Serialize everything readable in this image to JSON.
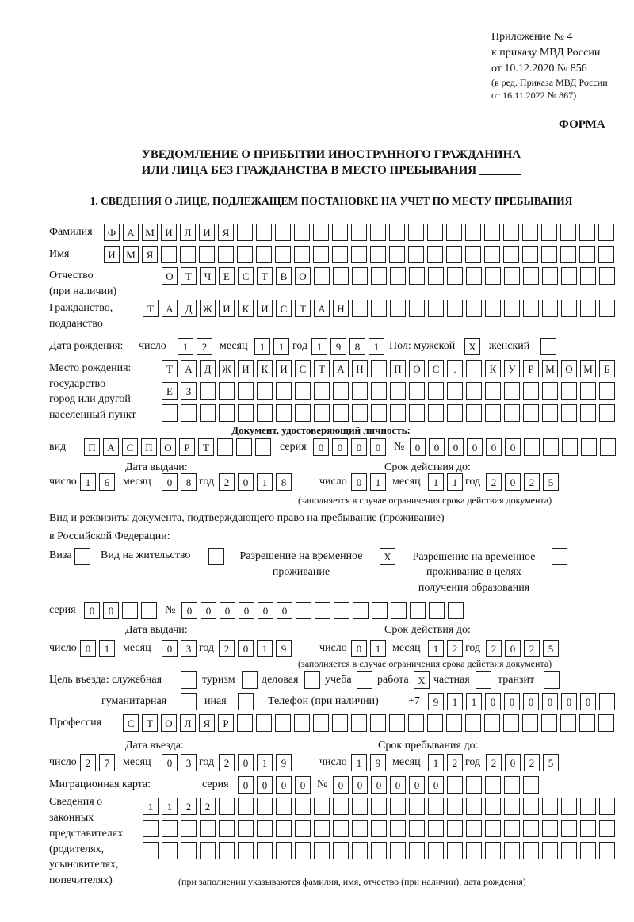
{
  "header": {
    "appendix": "Приложение № 4",
    "order": "к приказу МВД России",
    "order_date": "от 10.12.2020 № 856",
    "edition1": "(в ред. Приказа МВД России",
    "edition2": "от 16.11.2022 № 867)",
    "form": "ФОРМА",
    "title1": "УВЕДОМЛЕНИЕ О ПРИБЫТИИ ИНОСТРАННОГО ГРАЖДАНИНА",
    "title2": "ИЛИ ЛИЦА БЕЗ ГРАЖДАНСТВА В МЕСТО ПРЕБЫВАНИЯ _______",
    "section1": "1. СВЕДЕНИЯ О ЛИЦЕ, ПОДЛЕЖАЩЕМ ПОСТАНОВКЕ НА УЧЕТ ПО МЕСТУ ПРЕБЫВАНИЯ"
  },
  "labels": {
    "surname": "Фамилия",
    "name": "Имя",
    "patronymic1": "Отчество",
    "patronymic2": "(при наличии)",
    "citizenship1": "Гражданство,",
    "citizenship2": "подданство",
    "birth_date": "Дата рождения:",
    "day": "число",
    "month": "месяц",
    "year": "год",
    "sex": "Пол: мужской",
    "female": "женский",
    "birth_place1": "Место рождения:",
    "birth_place2": "государство",
    "birth_place3": "город или другой",
    "birth_place4": "населенный пункт",
    "id_doc": "Документ, удостоверяющий личность:",
    "kind": "вид",
    "series": "серия",
    "number": "№",
    "issue_date": "Дата выдачи:",
    "valid_until": "Срок действия до:",
    "valid_note": "(заполняется в случае ограничения срока действия документа)",
    "right_doc1": "Вид и реквизиты документа, подтверждающего право на пребывание (проживание)",
    "right_doc2": "в Российской Федерации:",
    "visa": "Виза",
    "residence": "Вид на жительство",
    "trp1": "Разрешение на временное",
    "trp2": "проживание",
    "trpe1": "Разрешение на временное",
    "trpe2": "проживание в целях",
    "trpe3": "получения образования",
    "purpose": "Цель въезда: служебная",
    "tourism": "туризм",
    "business": "деловая",
    "study": "учеба",
    "work": "работа",
    "private": "частная",
    "transit": "транзит",
    "humanitarian": "гуманитарная",
    "other": "иная",
    "phone": "Телефон (при наличии)",
    "phone_prefix": "+7",
    "profession": "Профессия",
    "entry_date": "Дата въезда:",
    "stay_until": "Срок пребывания до:",
    "migration_card": "Миграционная карта:",
    "reps1": "Сведения о",
    "reps2": "законных",
    "reps3": "представителях",
    "reps4": "(родителях,",
    "reps5": "усыновителях,",
    "reps6": "попечителях)",
    "reps_note": "(при заполнении указываются фамилия, имя, отчество (при наличии), дата рождения)"
  },
  "person": {
    "surname": "ФАМИЛИЯ",
    "name": "ИМЯ",
    "patronymic": "ОТЧЕСТВО",
    "citizenship": "ТАДЖИКИСТАН",
    "birth_day": "12",
    "birth_month": "11",
    "birth_year": "1981",
    "male": "X",
    "female": "",
    "birth_place_1": "ТАДЖИКИСТАН ПОС. КУРМОМБ",
    "birth_place_2": "ЕЗ",
    "birth_place_3": "",
    "profession": "СТОЛЯР",
    "phone": "911000000"
  },
  "id_document": {
    "kind": "ПАСПОРТ",
    "series": "0000",
    "number": "000000",
    "issue_day": "16",
    "issue_month": "08",
    "issue_year": "2018",
    "valid_day": "01",
    "valid_month": "11",
    "valid_year": "2025"
  },
  "right_document": {
    "visa": "",
    "residence": "",
    "trp": "X",
    "trp_education": "",
    "series": "00",
    "number": "000000",
    "issue_day": "01",
    "issue_month": "03",
    "issue_year": "2019",
    "valid_day": "01",
    "valid_month": "12",
    "valid_year": "2025"
  },
  "purpose": {
    "service": "",
    "tourism": "",
    "business": "",
    "study": "",
    "work": "X",
    "private": "",
    "transit": "",
    "humanitarian": "",
    "other": ""
  },
  "stay": {
    "entry_day": "27",
    "entry_month": "03",
    "entry_year": "2019",
    "until_day": "19",
    "until_month": "12",
    "until_year": "2025"
  },
  "migration_card": {
    "series": "0000",
    "number": "000000"
  },
  "representatives": {
    "line1": "1122",
    "line2": "",
    "line3": ""
  }
}
